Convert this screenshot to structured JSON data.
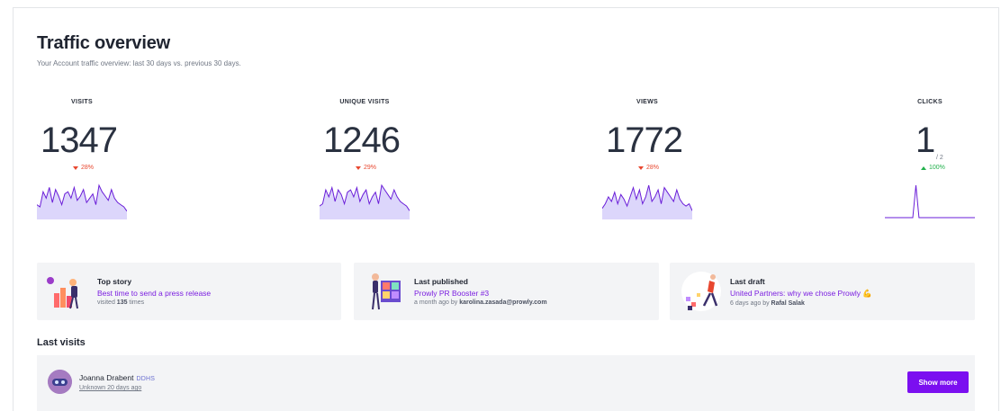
{
  "header": {
    "title": "Traffic overview",
    "subtitle": "Your Account traffic overview: last 30 days vs. previous 30 days."
  },
  "metrics": [
    {
      "label": "VISITS",
      "value": "1347",
      "trend": "28%",
      "direction": "down",
      "sparkline": [
        6,
        5,
        12,
        9,
        14,
        7,
        13,
        10,
        6,
        11,
        12,
        9,
        14,
        8,
        10,
        13,
        7,
        9,
        11,
        6,
        15,
        12,
        10,
        8,
        13,
        9,
        7,
        6,
        5,
        3
      ]
    },
    {
      "label": "UNIQUE VISITS",
      "value": "1246",
      "trend": "29%",
      "direction": "down",
      "sparkline": [
        5,
        6,
        12,
        9,
        13,
        7,
        12,
        10,
        6,
        11,
        12,
        9,
        13,
        7,
        10,
        12,
        6,
        9,
        11,
        6,
        14,
        12,
        10,
        8,
        12,
        9,
        7,
        6,
        5,
        3
      ]
    },
    {
      "label": "VIEWS",
      "value": "1772",
      "trend": "28%",
      "direction": "down",
      "sparkline": [
        4,
        6,
        9,
        7,
        11,
        6,
        10,
        8,
        5,
        9,
        13,
        8,
        12,
        6,
        9,
        14,
        7,
        9,
        12,
        6,
        13,
        11,
        9,
        7,
        12,
        8,
        6,
        5,
        6,
        3
      ]
    },
    {
      "label": "CLICKS",
      "value": "1",
      "sub": "/ 2",
      "trend": "100%",
      "direction": "up",
      "sparkline": [
        0,
        0,
        0,
        0,
        0,
        0,
        0,
        0,
        0,
        0,
        1,
        0,
        0,
        0,
        0,
        0,
        0,
        0,
        0,
        0,
        0,
        0,
        0,
        0,
        0,
        0,
        0,
        0,
        0,
        0
      ]
    }
  ],
  "colors": {
    "accent": "#7b0ff0",
    "spark_line": "#6a1ed8",
    "spark_fill": "#dcd6fb",
    "trend_down": "#e8472f",
    "trend_up": "#22b14c"
  },
  "cards": [
    {
      "title": "Top story",
      "link": "Best time to send a press release",
      "meta_prefix": "visited ",
      "meta_bold": "135",
      "meta_suffix": " times"
    },
    {
      "title": "Last published",
      "link": "Prowly PR Booster #3",
      "meta_prefix": "a month ago by ",
      "meta_bold": "karolina.zasada@prowly.com",
      "meta_suffix": ""
    },
    {
      "title": "Last draft",
      "link": "United Partners: why we chose Prowly 💪",
      "meta_prefix": "6 days ago by ",
      "meta_bold": "Rafal Salak",
      "meta_suffix": ""
    }
  ],
  "last_visits": {
    "heading": "Last visits",
    "rows": [
      {
        "name": "Joanna Drabent",
        "tag": "DDHS",
        "meta": "Unknown 20 days ago"
      }
    ],
    "show_more_label": "Show more"
  }
}
